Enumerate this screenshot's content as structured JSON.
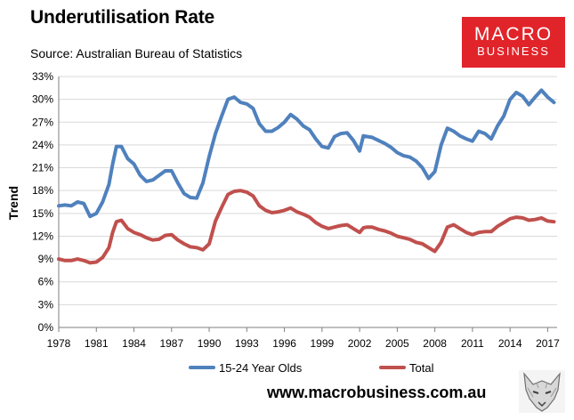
{
  "header": {
    "title": "Underutilisation Rate",
    "source": "Source: Australian Bureau of Statistics"
  },
  "logo": {
    "line1": "MACRO",
    "line2": "BUSINESS",
    "color": "#e1242a"
  },
  "footer": {
    "url": "www.macrobusiness.com.au"
  },
  "chart_data": {
    "type": "line",
    "title": "Underutilisation Rate",
    "ylabel": "Trend",
    "xlabel": "",
    "ylim": [
      0,
      33
    ],
    "xlim": [
      1978,
      2017.75
    ],
    "grid": true,
    "legend_position": "bottom",
    "y_ticks": [
      "0%",
      "3%",
      "6%",
      "9%",
      "12%",
      "15%",
      "18%",
      "21%",
      "24%",
      "27%",
      "30%",
      "33%"
    ],
    "x_ticks": [
      "1978",
      "1981",
      "1984",
      "1987",
      "1990",
      "1993",
      "1996",
      "1999",
      "2002",
      "2005",
      "2008",
      "2011",
      "2014",
      "2017"
    ],
    "series": [
      {
        "name": "15-24 Year Olds",
        "color": "#4f81bd",
        "x": [
          1978,
          1978.5,
          1979,
          1979.5,
          1980,
          1980.5,
          1981,
          1981.5,
          1982,
          1982.3,
          1982.6,
          1983,
          1983.5,
          1984,
          1984.5,
          1985,
          1985.5,
          1986,
          1986.5,
          1987,
          1987.5,
          1988,
          1988.5,
          1989,
          1989.5,
          1990,
          1990.5,
          1991,
          1991.5,
          1992,
          1992.5,
          1993,
          1993.5,
          1994,
          1994.5,
          1995,
          1995.5,
          1996,
          1996.5,
          1997,
          1997.5,
          1998,
          1998.5,
          1999,
          1999.5,
          2000,
          2000.5,
          2001,
          2001.5,
          2002,
          2002.3,
          2002.6,
          2003,
          2003.5,
          2004,
          2004.5,
          2005,
          2005.5,
          2006,
          2006.5,
          2007,
          2007.5,
          2008,
          2008.5,
          2009,
          2009.5,
          2010,
          2010.5,
          2011,
          2011.5,
          2012,
          2012.5,
          2013,
          2013.5,
          2014,
          2014.5,
          2015,
          2015.5,
          2016,
          2016.5,
          2017,
          2017.5
        ],
        "values": [
          16.0,
          16.1,
          16.0,
          16.5,
          16.3,
          14.6,
          15.0,
          16.5,
          18.8,
          21.5,
          23.8,
          23.8,
          22.2,
          21.5,
          20.0,
          19.2,
          19.4,
          20.0,
          20.6,
          20.6,
          19.0,
          17.6,
          17.1,
          17.0,
          19.0,
          22.5,
          25.5,
          27.8,
          30.0,
          30.3,
          29.6,
          29.4,
          28.8,
          26.8,
          25.8,
          25.8,
          26.3,
          27.0,
          28.0,
          27.4,
          26.5,
          26.0,
          24.8,
          23.8,
          23.6,
          25.1,
          25.5,
          25.6,
          24.6,
          23.2,
          25.2,
          25.1,
          25.0,
          24.6,
          24.2,
          23.7,
          23.0,
          22.6,
          22.4,
          21.9,
          21.0,
          19.6,
          20.5,
          24.0,
          26.2,
          25.8,
          25.2,
          24.8,
          24.5,
          25.8,
          25.5,
          24.8,
          26.5,
          27.8,
          30.0,
          30.9,
          30.4,
          29.3,
          30.3,
          31.2,
          30.3,
          29.6
        ]
      },
      {
        "name": "Total",
        "color": "#c0504d",
        "x": [
          1978,
          1978.5,
          1979,
          1979.5,
          1980,
          1980.5,
          1981,
          1981.5,
          1982,
          1982.3,
          1982.6,
          1983,
          1983.5,
          1984,
          1984.5,
          1985,
          1985.5,
          1986,
          1986.5,
          1987,
          1987.5,
          1988,
          1988.5,
          1989,
          1989.5,
          1990,
          1990.5,
          1991,
          1991.5,
          1992,
          1992.5,
          1993,
          1993.5,
          1994,
          1994.5,
          1995,
          1995.5,
          1996,
          1996.5,
          1997,
          1997.5,
          1998,
          1998.5,
          1999,
          1999.5,
          2000,
          2000.5,
          2001,
          2001.5,
          2002,
          2002.3,
          2002.6,
          2003,
          2003.5,
          2004,
          2004.5,
          2005,
          2005.5,
          2006,
          2006.5,
          2007,
          2007.5,
          2008,
          2008.5,
          2009,
          2009.5,
          2010,
          2010.5,
          2011,
          2011.5,
          2012,
          2012.5,
          2013,
          2013.5,
          2014,
          2014.5,
          2015,
          2015.5,
          2016,
          2016.5,
          2017,
          2017.5
        ],
        "values": [
          9.0,
          8.8,
          8.8,
          9.0,
          8.8,
          8.5,
          8.6,
          9.2,
          10.5,
          12.5,
          13.9,
          14.1,
          13.0,
          12.5,
          12.2,
          11.8,
          11.5,
          11.6,
          12.1,
          12.2,
          11.5,
          11.0,
          10.6,
          10.5,
          10.2,
          11.0,
          14.0,
          15.8,
          17.5,
          17.9,
          18.0,
          17.8,
          17.3,
          16.0,
          15.4,
          15.1,
          15.2,
          15.4,
          15.7,
          15.2,
          14.9,
          14.5,
          13.8,
          13.3,
          13.0,
          13.2,
          13.4,
          13.5,
          13.0,
          12.5,
          13.1,
          13.2,
          13.2,
          12.9,
          12.7,
          12.4,
          12.0,
          11.8,
          11.6,
          11.2,
          11.0,
          10.5,
          10.0,
          11.2,
          13.2,
          13.5,
          13.0,
          12.5,
          12.2,
          12.5,
          12.6,
          12.6,
          13.3,
          13.8,
          14.3,
          14.5,
          14.4,
          14.1,
          14.2,
          14.4,
          14.0,
          13.9
        ]
      }
    ]
  }
}
